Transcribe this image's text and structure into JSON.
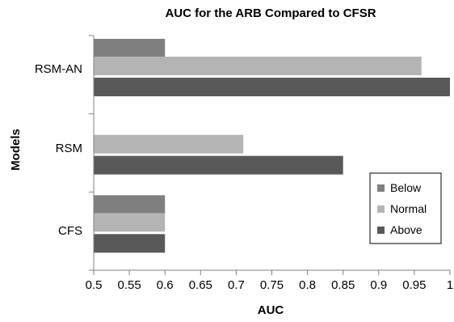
{
  "chart_data": {
    "type": "bar",
    "orientation": "horizontal",
    "title": "AUC for the ARB Compared to CFSR",
    "xlabel": "AUC",
    "ylabel": "Models",
    "categories": [
      "RSM-AN",
      "RSM",
      "CFS"
    ],
    "series": [
      {
        "name": "Below",
        "color": "#7f7f7f",
        "values": [
          0.6,
          null,
          0.6
        ]
      },
      {
        "name": "Normal",
        "color": "#b4b4b4",
        "values": [
          0.96,
          0.71,
          0.6
        ]
      },
      {
        "name": "Above",
        "color": "#595959",
        "values": [
          1.0,
          0.85,
          0.6
        ]
      }
    ],
    "xlim": [
      0.5,
      1.0
    ],
    "xticks": [
      "0.5",
      "0.55",
      "0.6",
      "0.65",
      "0.7",
      "0.75",
      "0.8",
      "0.85",
      "0.9",
      "0.95",
      "1"
    ],
    "grid": false,
    "legend_position": "right"
  }
}
